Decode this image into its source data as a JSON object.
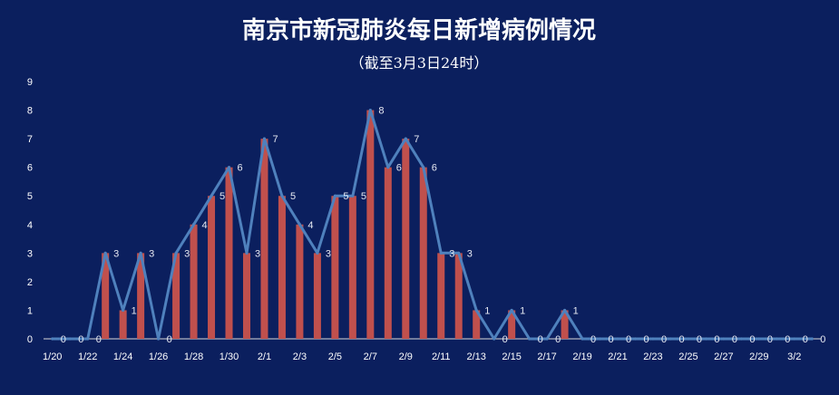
{
  "chart_data": {
    "type": "bar",
    "title": "南京市新冠肺炎每日新增病例情况",
    "subtitle": "（截至3月3日24时）",
    "ylim": [
      0,
      9
    ],
    "y_ticks": [
      "0",
      "1",
      "2",
      "3",
      "4",
      "5",
      "6",
      "7",
      "8",
      "9"
    ],
    "x_tick_labels": [
      "1/20",
      "1/22",
      "1/24",
      "1/26",
      "1/28",
      "1/30",
      "2/1",
      "2/3",
      "2/5",
      "2/7",
      "2/9",
      "2/11",
      "2/13",
      "2/15",
      "2/17",
      "2/19",
      "2/21",
      "2/23",
      "2/25",
      "2/27",
      "2/29",
      "3/2"
    ],
    "categories": [
      "1/20",
      "1/21",
      "1/22",
      "1/23",
      "1/24",
      "1/25",
      "1/26",
      "1/27",
      "1/28",
      "1/29",
      "1/30",
      "1/31",
      "2/1",
      "2/2",
      "2/3",
      "2/4",
      "2/5",
      "2/6",
      "2/7",
      "2/8",
      "2/9",
      "2/10",
      "2/11",
      "2/12",
      "2/13",
      "2/14",
      "2/15",
      "2/16",
      "2/17",
      "2/18",
      "2/19",
      "2/20",
      "2/21",
      "2/22",
      "2/23",
      "2/24",
      "2/25",
      "2/26",
      "2/27",
      "2/28",
      "2/29",
      "3/1",
      "3/2",
      "3/3"
    ],
    "values": [
      0,
      0,
      0,
      3,
      1,
      3,
      0,
      3,
      4,
      5,
      6,
      3,
      7,
      5,
      4,
      3,
      5,
      5,
      8,
      6,
      7,
      6,
      3,
      3,
      1,
      0,
      1,
      0,
      0,
      1,
      0,
      0,
      0,
      0,
      0,
      0,
      0,
      0,
      0,
      0,
      0,
      0,
      0,
      0
    ],
    "colors": {
      "background": "#0b1f5e",
      "bar": "#c0504d",
      "line": "#4f81bd",
      "text": "#ffffff",
      "label": "#e6e9f2",
      "axis": "#d9d9d9"
    }
  }
}
